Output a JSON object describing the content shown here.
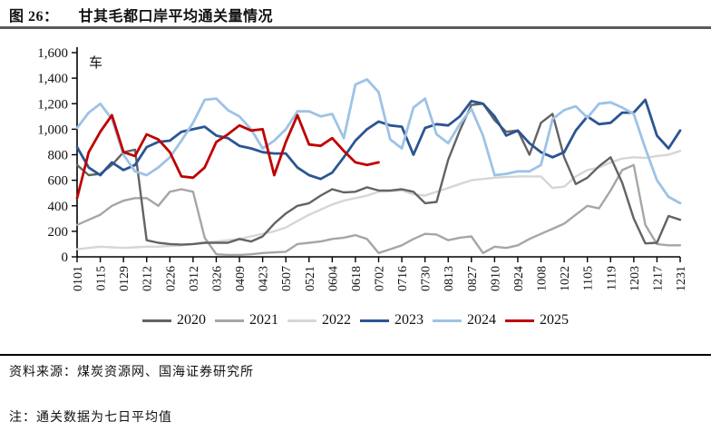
{
  "header": {
    "figure_label": "图 26：",
    "title": "甘其毛都口岸平均通关量情况"
  },
  "footer": {
    "source": "资料来源：煤炭资源网、国海证券研究所",
    "note": "注：通关数据为七日平均值"
  },
  "chart_data": {
    "type": "line",
    "unit": "车",
    "ylim": [
      0,
      1600
    ],
    "y_step": 200,
    "grid": false,
    "legend_position": "bottom",
    "x_mode": "day-of-year, weekly points (7-day moving average)",
    "x_weekly_dates": [
      "0101",
      "0108",
      "0115",
      "0122",
      "0129",
      "0205",
      "0212",
      "0219",
      "0226",
      "0305",
      "0312",
      "0319",
      "0326",
      "0402",
      "0409",
      "0416",
      "0423",
      "0430",
      "0507",
      "0514",
      "0521",
      "0528",
      "0604",
      "0611",
      "0618",
      "0625",
      "0702",
      "0709",
      "0716",
      "0723",
      "0730",
      "0806",
      "0813",
      "0820",
      "0827",
      "0903",
      "0910",
      "0917",
      "0924",
      "1001",
      "1008",
      "1015",
      "1022",
      "1029",
      "1105",
      "1112",
      "1119",
      "1126",
      "1203",
      "1210",
      "1217",
      "1224",
      "1231"
    ],
    "x_tick_labels": [
      "0101",
      "0115",
      "0129",
      "0212",
      "0226",
      "0312",
      "0326",
      "0409",
      "0423",
      "0507",
      "0521",
      "0604",
      "0618",
      "0702",
      "0716",
      "0730",
      "0813",
      "0827",
      "0910",
      "0924",
      "1008",
      "1022",
      "1105",
      "1119",
      "1203",
      "1217",
      "1231"
    ],
    "draw_order": [
      "2022",
      "2021",
      "2020",
      "2023",
      "2024",
      "2025"
    ],
    "series": [
      {
        "name": "2020",
        "color": "#636363",
        "width": 2.4,
        "values": [
          720,
          640,
          650,
          720,
          820,
          840,
          130,
          110,
          100,
          95,
          100,
          110,
          110,
          110,
          140,
          120,
          160,
          260,
          340,
          400,
          420,
          480,
          530,
          505,
          510,
          545,
          520,
          520,
          530,
          510,
          420,
          430,
          760,
          990,
          1190,
          1200,
          1070,
          980,
          990,
          800,
          1050,
          1120,
          780,
          570,
          620,
          710,
          780,
          580,
          300,
          105,
          110,
          320,
          290
        ]
      },
      {
        "name": "2021",
        "color": "#a6a6a6",
        "width": 2.4,
        "values": [
          250,
          290,
          330,
          400,
          440,
          460,
          460,
          400,
          510,
          530,
          510,
          150,
          20,
          15,
          15,
          20,
          30,
          35,
          40,
          100,
          110,
          120,
          140,
          150,
          170,
          140,
          30,
          60,
          90,
          140,
          180,
          175,
          130,
          150,
          160,
          30,
          80,
          70,
          90,
          140,
          180,
          220,
          260,
          330,
          400,
          380,
          520,
          680,
          720,
          250,
          100,
          90,
          90
        ]
      },
      {
        "name": "2022",
        "color": "#d6d6d6",
        "width": 2.4,
        "values": [
          60,
          70,
          80,
          75,
          70,
          75,
          80,
          80,
          85,
          90,
          100,
          110,
          120,
          130,
          140,
          160,
          180,
          200,
          230,
          280,
          330,
          370,
          410,
          440,
          460,
          480,
          510,
          515,
          520,
          490,
          480,
          510,
          540,
          570,
          600,
          610,
          620,
          625,
          630,
          630,
          630,
          540,
          550,
          630,
          680,
          700,
          740,
          770,
          780,
          775,
          790,
          800,
          830
        ]
      },
      {
        "name": "2023",
        "color": "#2b5592",
        "width": 2.8,
        "values": [
          860,
          700,
          640,
          740,
          680,
          720,
          860,
          900,
          910,
          980,
          1000,
          1020,
          950,
          930,
          870,
          850,
          820,
          810,
          810,
          700,
          640,
          610,
          660,
          780,
          910,
          1000,
          1060,
          1030,
          1020,
          800,
          1010,
          1040,
          1030,
          1100,
          1220,
          1200,
          1100,
          950,
          990,
          890,
          820,
          780,
          820,
          990,
          1100,
          1040,
          1050,
          1130,
          1130,
          1230,
          950,
          850,
          990
        ]
      },
      {
        "name": "2024",
        "color": "#9dc3e6",
        "width": 2.8,
        "values": [
          1010,
          1130,
          1200,
          1080,
          800,
          670,
          640,
          700,
          780,
          910,
          1050,
          1230,
          1240,
          1150,
          1100,
          1000,
          850,
          910,
          1000,
          1140,
          1140,
          1100,
          1120,
          930,
          1350,
          1390,
          1290,
          920,
          850,
          1170,
          1240,
          960,
          890,
          1040,
          1160,
          950,
          640,
          650,
          670,
          670,
          720,
          1080,
          1150,
          1180,
          1090,
          1200,
          1210,
          1170,
          1120,
          850,
          600,
          470,
          420
        ]
      },
      {
        "name": "2025",
        "color": "#c00000",
        "width": 2.8,
        "values": [
          460,
          820,
          980,
          1110,
          820,
          790,
          960,
          920,
          820,
          630,
          620,
          700,
          900,
          960,
          1030,
          990,
          1000,
          640,
          900,
          1110,
          880,
          870,
          930,
          830,
          740,
          720,
          740,
          null,
          null,
          null,
          null,
          null,
          null,
          null,
          null,
          null,
          null,
          null,
          null,
          null,
          null,
          null,
          null,
          null,
          null,
          null,
          null,
          null,
          null,
          null,
          null,
          null,
          null
        ]
      }
    ]
  }
}
